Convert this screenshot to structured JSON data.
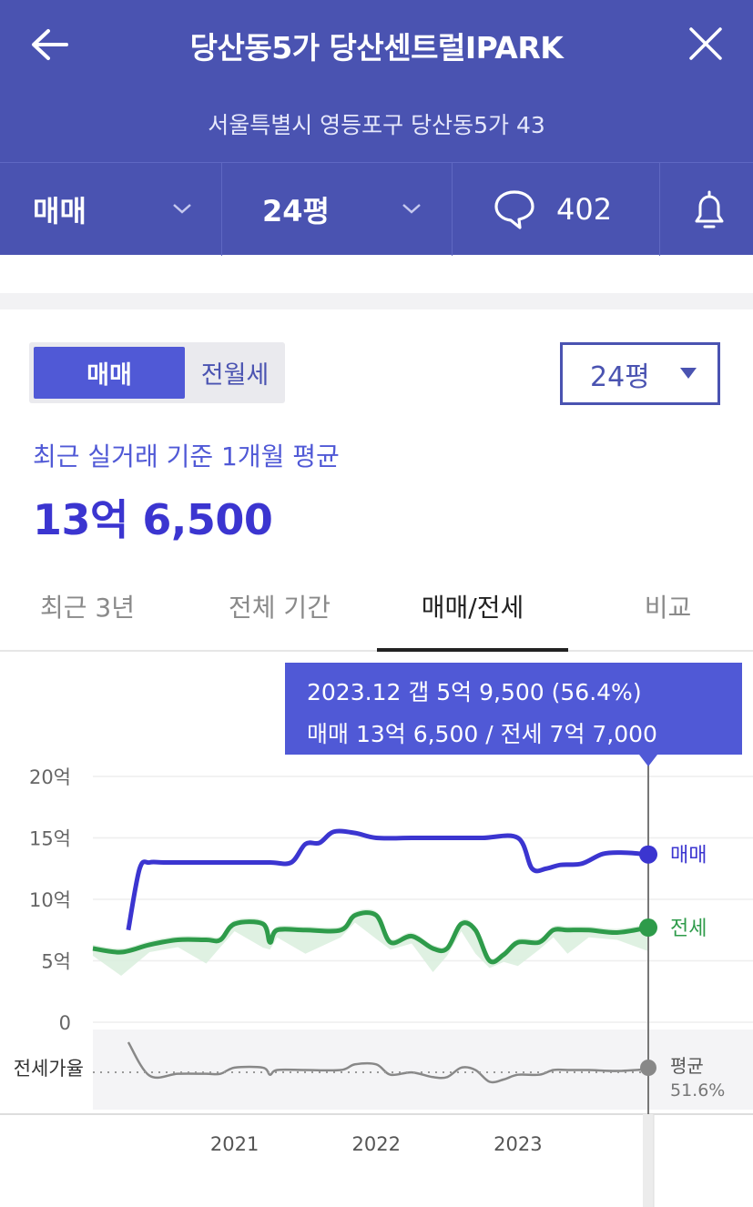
{
  "header": {
    "title": "당산동5가 당산센트럴IPARK",
    "address": "서울특별시 영등포구 당산동5가 43"
  },
  "filters": {
    "trade_type": "매매",
    "area": "24평",
    "comment_count": "402"
  },
  "segment": {
    "active": "매매",
    "inactive": "전월세"
  },
  "size_select": {
    "value": "24평"
  },
  "summary": {
    "caption": "최근 실거래 기준 1개월 평균",
    "price": "13억 6,500"
  },
  "tabs": [
    {
      "label": "최근 3년"
    },
    {
      "label": "전체 기간"
    },
    {
      "label": "매매/전세"
    },
    {
      "label": "비교"
    }
  ],
  "tooltip": {
    "line1": "2023.12  갭 5억 9,500 (56.4%)",
    "line2": "매매 13억 6,500 / 전세 7억 7,000"
  },
  "colors": {
    "header_bg": "#4a53b1",
    "accent": "#5059d6",
    "sale_line": "#3b35d0",
    "jeonse_line": "#2e9b4a"
  },
  "chart_data": {
    "type": "line",
    "y_ticks": [
      "20억",
      "15억",
      "10억",
      "5억",
      "0"
    ],
    "ylim": [
      0,
      20
    ],
    "x_ticks": [
      "2021",
      "2022",
      "2023"
    ],
    "series": [
      {
        "name": "매매",
        "x": [
          2020.25,
          2020.33,
          2020.4,
          2020.5,
          2020.75,
          2021.0,
          2021.25,
          2021.4,
          2021.5,
          2021.6,
          2021.7,
          2021.85,
          2022.0,
          2022.25,
          2022.5,
          2022.75,
          2023.0,
          2023.1,
          2023.2,
          2023.3,
          2023.45,
          2023.6,
          2023.75,
          2023.92
        ],
        "values": [
          7.5,
          12.5,
          13.0,
          13.0,
          13.0,
          13.0,
          13.0,
          13.0,
          14.5,
          14.6,
          15.5,
          15.4,
          15.0,
          15.0,
          15.0,
          15.0,
          15.0,
          12.5,
          12.5,
          12.8,
          12.9,
          13.7,
          13.8,
          13.65
        ]
      },
      {
        "name": "전세",
        "x": [
          2020.0,
          2020.2,
          2020.4,
          2020.6,
          2020.8,
          2020.9,
          2021.0,
          2021.2,
          2021.25,
          2021.3,
          2021.5,
          2021.75,
          2021.85,
          2022.0,
          2022.1,
          2022.25,
          2022.4,
          2022.5,
          2022.6,
          2022.7,
          2022.8,
          2022.9,
          2023.0,
          2023.15,
          2023.25,
          2023.35,
          2023.5,
          2023.7,
          2023.92
        ],
        "values": [
          6.0,
          5.7,
          6.3,
          6.7,
          6.7,
          6.7,
          8.0,
          8.0,
          6.5,
          7.5,
          7.5,
          7.5,
          8.7,
          8.7,
          6.5,
          7.0,
          6.0,
          6.0,
          8.0,
          7.5,
          5.0,
          5.5,
          6.5,
          6.5,
          7.5,
          7.5,
          7.5,
          7.3,
          7.7
        ]
      }
    ],
    "legend": [
      "매매",
      "전세"
    ],
    "ratio_panel": {
      "label": "전세가율",
      "avg_label": "평균",
      "avg_value": "51.6%"
    }
  }
}
